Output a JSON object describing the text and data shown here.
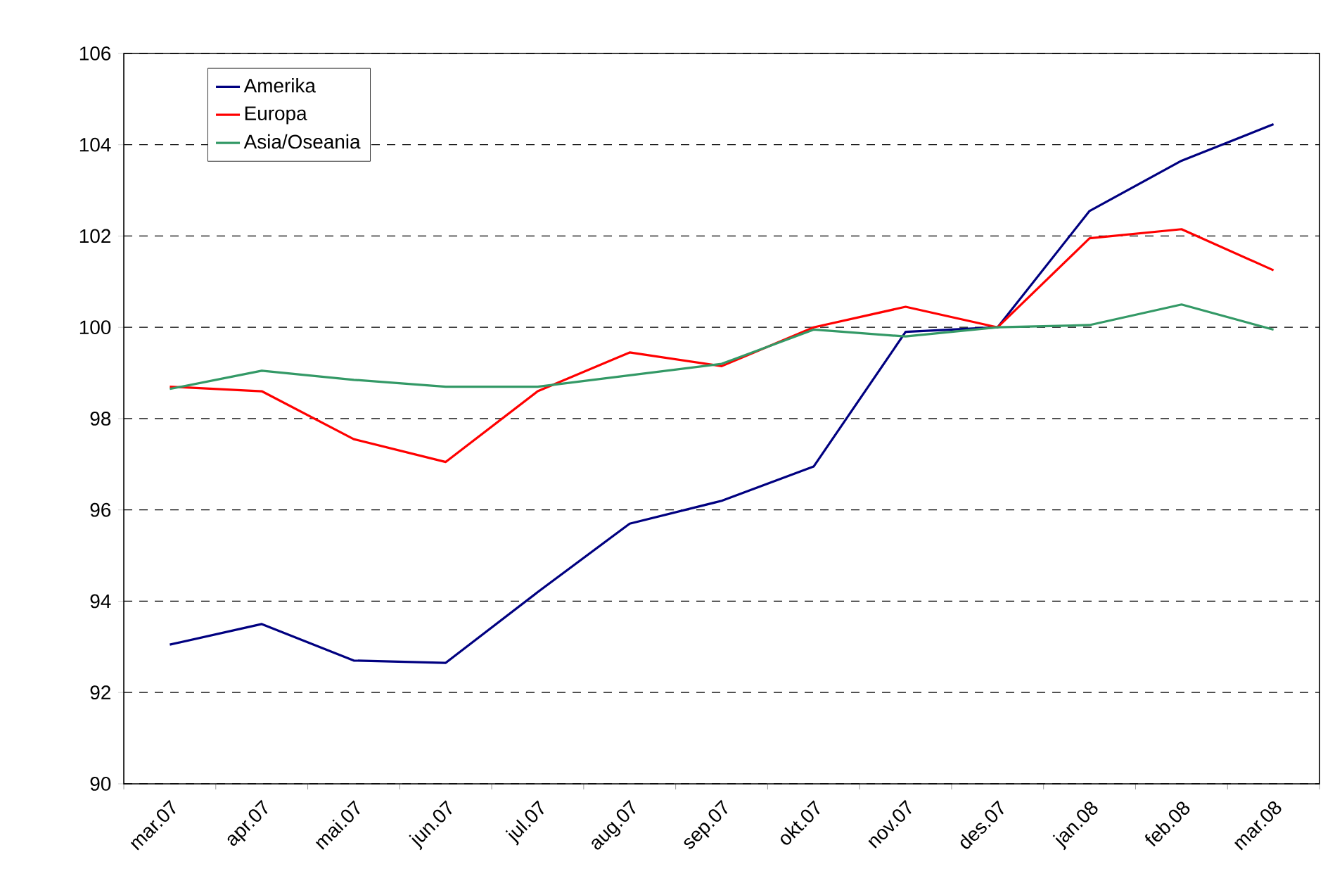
{
  "chart_data": {
    "type": "line",
    "categories": [
      "mar.07",
      "apr.07",
      "mai.07",
      "jun.07",
      "jul.07",
      "aug.07",
      "sep.07",
      "okt.07",
      "nov.07",
      "des.07",
      "jan.08",
      "feb.08",
      "mar.08"
    ],
    "series": [
      {
        "name": "Amerika",
        "color": "#000080",
        "values": [
          93.05,
          93.5,
          92.7,
          92.65,
          94.2,
          95.7,
          96.2,
          96.95,
          99.9,
          100.0,
          102.55,
          103.65,
          104.45
        ]
      },
      {
        "name": "Europa",
        "color": "#ff0000",
        "values": [
          98.7,
          98.6,
          97.55,
          97.05,
          98.6,
          99.45,
          99.15,
          100.0,
          100.45,
          100.0,
          101.95,
          102.15,
          101.25
        ]
      },
      {
        "name": "Asia/Oseania",
        "color": "#339966",
        "values": [
          98.65,
          99.05,
          98.85,
          98.7,
          98.7,
          98.95,
          99.2,
          99.95,
          99.8,
          100.0,
          100.05,
          100.5,
          99.95
        ]
      }
    ],
    "ylim": [
      90,
      106
    ],
    "yticks": [
      90,
      92,
      94,
      96,
      98,
      100,
      102,
      104,
      106
    ],
    "grid": "y",
    "legend": "top left",
    "marker": "none",
    "line_style": "solid"
  }
}
